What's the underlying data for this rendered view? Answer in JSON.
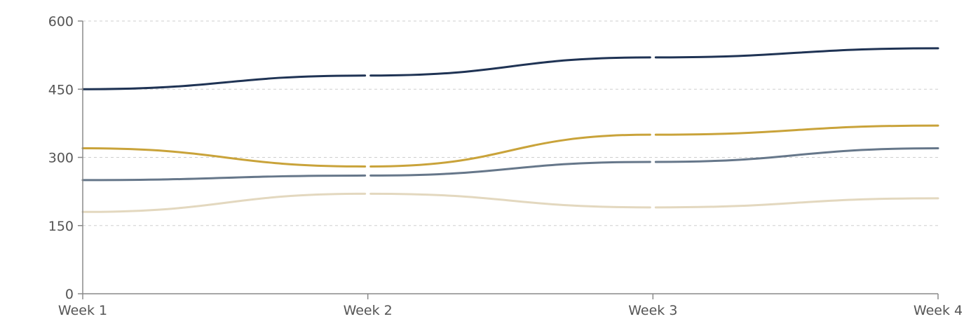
{
  "chart_data": {
    "type": "line",
    "title": "",
    "xlabel": "",
    "ylabel": "",
    "categories": [
      "Week 1",
      "Week 2",
      "Week 3",
      "Week 4"
    ],
    "ylim": [
      0,
      600
    ],
    "yticks": [
      0,
      150,
      300,
      450,
      600
    ],
    "grid": true,
    "legend": "none",
    "series": [
      {
        "color": "#1f3354",
        "values": [
          450,
          480,
          520,
          540
        ]
      },
      {
        "color": "#c9a33a",
        "values": [
          320,
          280,
          350,
          370
        ]
      },
      {
        "color": "#66778a",
        "values": [
          250,
          260,
          290,
          320
        ]
      },
      {
        "color": "#e3d8bf",
        "values": [
          180,
          220,
          190,
          210
        ]
      }
    ]
  }
}
